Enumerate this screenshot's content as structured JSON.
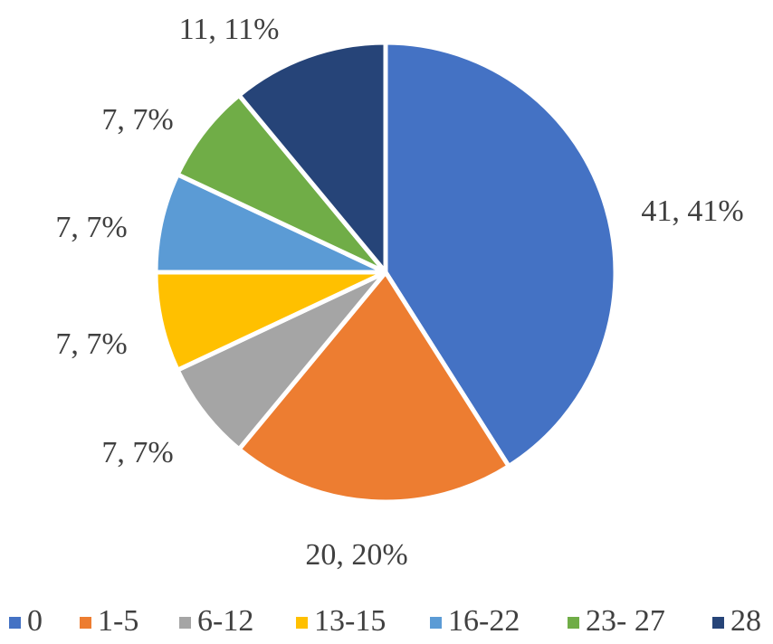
{
  "chart_data": {
    "type": "pie",
    "title": "",
    "categories": [
      "0",
      "1-5",
      "6-12",
      "13-15",
      "16-22",
      "23- 27",
      "28"
    ],
    "values": [
      41,
      20,
      7,
      7,
      7,
      7,
      11
    ],
    "percents": [
      "41%",
      "20%",
      "7%",
      "7%",
      "7%",
      "7%",
      "11%"
    ],
    "data_labels": [
      "41, 41%",
      "20, 20%",
      "7, 7%",
      "7, 7%",
      "7, 7%",
      "7, 7%",
      "11, 11%"
    ],
    "colors": [
      "#4472C4",
      "#ED7D31",
      "#A5A5A5",
      "#FFC000",
      "#5B9BD5",
      "#70AD47",
      "#264478"
    ],
    "legend_position": "bottom",
    "start_angle": "12 o'clock",
    "direction": "clockwise"
  }
}
